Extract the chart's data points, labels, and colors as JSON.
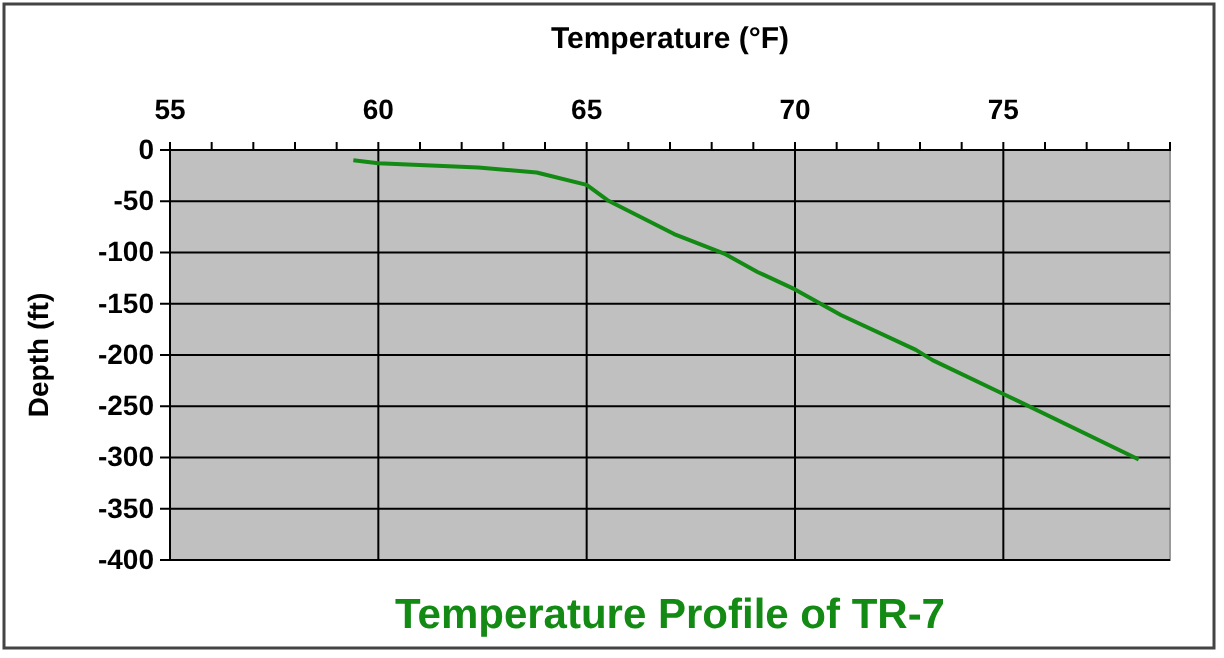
{
  "chart_data": {
    "type": "line",
    "title": "Temperature Profile of TR-7",
    "xlabel": "Temperature (°F)",
    "ylabel": "Depth (ft)",
    "xlim": [
      55,
      79
    ],
    "xticks": [
      55,
      {
        "value": 56,
        "label": null
      },
      {
        "value": 57,
        "label": null
      },
      {
        "value": 58,
        "label": null
      },
      {
        "value": 59,
        "label": null
      },
      60,
      {
        "value": 61,
        "label": null
      },
      {
        "value": 62,
        "label": null
      },
      {
        "value": 63,
        "label": null
      },
      {
        "value": 64,
        "label": null
      },
      65,
      {
        "value": 66,
        "label": null
      },
      {
        "value": 67,
        "label": null
      },
      {
        "value": 68,
        "label": null
      },
      {
        "value": 69,
        "label": null
      },
      70,
      {
        "value": 71,
        "label": null
      },
      {
        "value": 72,
        "label": null
      },
      {
        "value": 73,
        "label": null
      },
      {
        "value": 74,
        "label": null
      },
      75,
      {
        "value": 76,
        "label": null
      },
      {
        "value": 77,
        "label": null
      },
      {
        "value": 78,
        "label": null
      },
      {
        "value": 79,
        "label": null
      }
    ],
    "ylim": [
      -400,
      0
    ],
    "yticks": [
      -400,
      -350,
      -300,
      -250,
      -200,
      -150,
      -100,
      -50,
      0
    ],
    "grid": true,
    "marker": "none",
    "line_style": "solid",
    "series": [
      {
        "color": "#138a13",
        "x": [
          59.4,
          60.0,
          62.4,
          63.8,
          65.0,
          65.5,
          67.1,
          68.3,
          69.1,
          70.0,
          71.1,
          72.9,
          73.3,
          75.0,
          78.25
        ],
        "values": [
          -10,
          -13,
          -17,
          -22,
          -34,
          -49,
          -82,
          -101,
          -119,
          -136,
          -161,
          -195,
          -205,
          -238,
          -302
        ]
      }
    ]
  }
}
